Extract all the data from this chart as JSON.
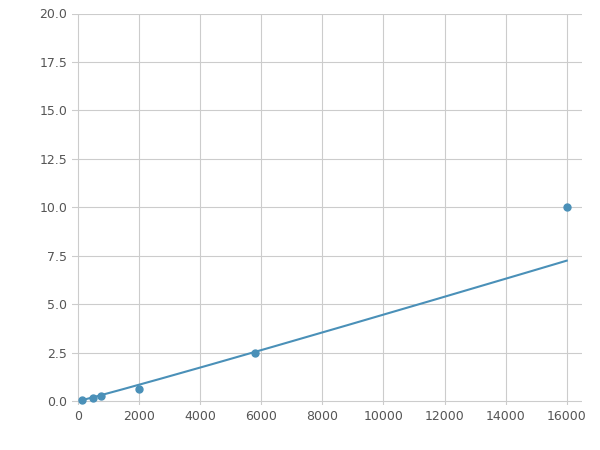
{
  "x": [
    125,
    500,
    750,
    2000,
    5800,
    16000
  ],
  "y": [
    0.07,
    0.18,
    0.25,
    0.6,
    2.5,
    10.0
  ],
  "marker_x": [
    125,
    500,
    750,
    2000,
    5800,
    16000
  ],
  "marker_y": [
    0.07,
    0.18,
    0.25,
    0.6,
    2.5,
    10.0
  ],
  "line_color": "#4a90b8",
  "marker_color": "#4a90b8",
  "marker_size": 5,
  "xlim": [
    -200,
    16500
  ],
  "ylim": [
    -0.2,
    20.0
  ],
  "xticks": [
    0,
    2000,
    4000,
    6000,
    8000,
    10000,
    12000,
    14000,
    16000
  ],
  "yticks": [
    0.0,
    2.5,
    5.0,
    7.5,
    10.0,
    12.5,
    15.0,
    17.5,
    20.0
  ],
  "grid_color": "#cccccc",
  "background_color": "#ffffff",
  "figsize": [
    6.0,
    4.5
  ],
  "dpi": 100
}
